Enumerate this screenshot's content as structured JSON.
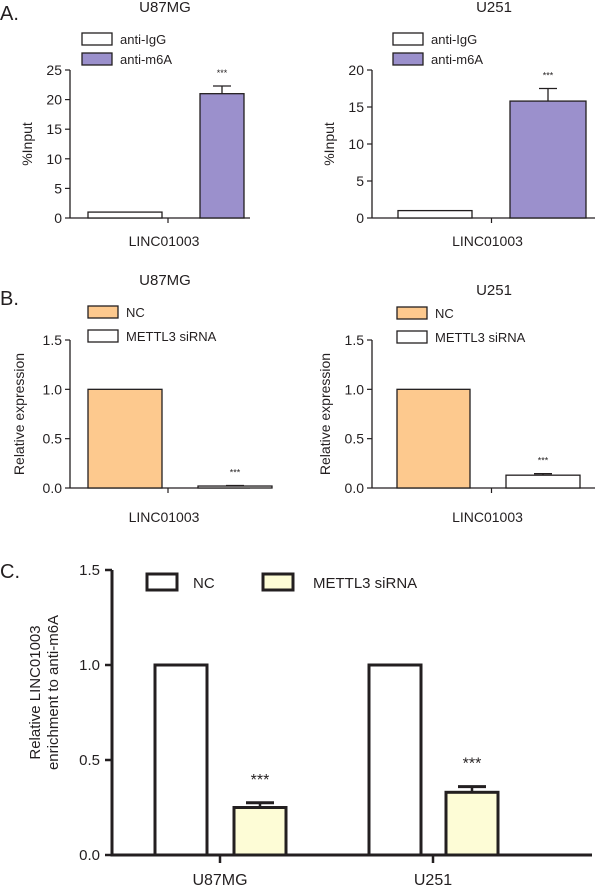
{
  "panels": {
    "A_label": "A.",
    "B_label": "B.",
    "C_label": "C."
  },
  "chart_data": [
    {
      "id": "A1",
      "type": "bar",
      "title": "U87MG",
      "xlabel": "LINC01003",
      "ylabel": "%Input",
      "ylim": [
        0,
        25
      ],
      "yticks": [
        "0",
        "5",
        "10",
        "15",
        "20",
        "25"
      ],
      "series": [
        {
          "name": "anti-IgG",
          "value": 1.0,
          "error": 0,
          "color": "#ffffff",
          "sig": ""
        },
        {
          "name": "anti-m6A",
          "value": 21.0,
          "error": 1.3,
          "color": "#9b90cc",
          "sig": "***"
        }
      ]
    },
    {
      "id": "A2",
      "type": "bar",
      "title": "U251",
      "xlabel": "LINC01003",
      "ylabel": "%Input",
      "ylim": [
        0,
        20
      ],
      "yticks": [
        "0",
        "5",
        "10",
        "15",
        "20"
      ],
      "series": [
        {
          "name": "anti-IgG",
          "value": 1.0,
          "error": 0,
          "color": "#ffffff",
          "sig": ""
        },
        {
          "name": "anti-m6A",
          "value": 15.8,
          "error": 1.7,
          "color": "#9b90cc",
          "sig": "***"
        }
      ]
    },
    {
      "id": "B1",
      "type": "bar",
      "title": "U87MG",
      "xlabel": "LINC01003",
      "ylabel": "Relative expression",
      "ylim": [
        0,
        1.5
      ],
      "yticks": [
        "0.0",
        "0.5",
        "1.0",
        "1.5"
      ],
      "series": [
        {
          "name": "NC",
          "value": 1.0,
          "error": 0,
          "color": "#fdc98e",
          "sig": ""
        },
        {
          "name": "METTL3 siRNA",
          "value": 0.02,
          "error": 0.005,
          "color": "#ffffff",
          "sig": "***"
        }
      ]
    },
    {
      "id": "B2",
      "type": "bar",
      "title": "U251",
      "xlabel": "LINC01003",
      "ylabel": "Relative expression",
      "ylim": [
        0,
        1.5
      ],
      "yticks": [
        "0.0",
        "0.5",
        "1.0",
        "1.5"
      ],
      "series": [
        {
          "name": "NC",
          "value": 1.0,
          "error": 0,
          "color": "#fdc98e",
          "sig": ""
        },
        {
          "name": "METTL3 siRNA",
          "value": 0.13,
          "error": 0.015,
          "color": "#ffffff",
          "sig": "***"
        }
      ]
    },
    {
      "id": "C",
      "type": "bar",
      "title": "",
      "ylabel": "Relative LINC01003 enrichment to anti-m6A",
      "ylabel_lines": [
        "Relative LINC01003",
        "enrichment to anti-m6A"
      ],
      "ylim": [
        0,
        1.5
      ],
      "yticks": [
        "0.0",
        "0.5",
        "1.0",
        "1.5"
      ],
      "categories": [
        "U87MG",
        "U251"
      ],
      "series": [
        {
          "name": "NC",
          "values": [
            1.0,
            1.0
          ],
          "errors": [
            0,
            0
          ],
          "color": "#ffffff",
          "sig": [
            "",
            ""
          ]
        },
        {
          "name": "METTL3 siRNA",
          "values": [
            0.25,
            0.33
          ],
          "errors": [
            0.025,
            0.03
          ],
          "color": "#fdfcd6",
          "sig": [
            "***",
            "***"
          ]
        }
      ]
    }
  ]
}
